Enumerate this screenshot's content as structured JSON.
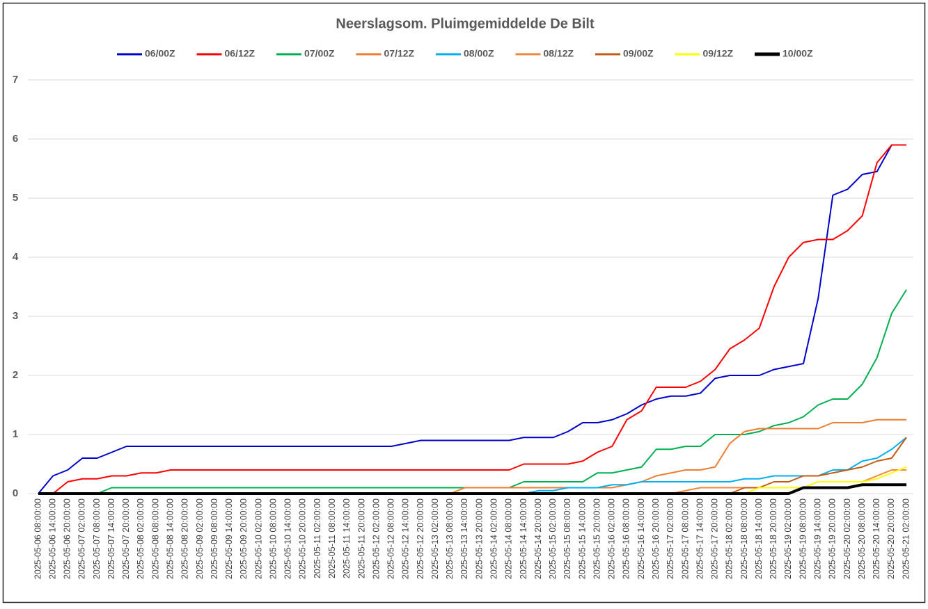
{
  "chart_data": {
    "type": "line",
    "title": "Neerslagsom. Pluimgemiddelde De Bilt",
    "categories": [
      "2025-05-06 08:00:00",
      "2025-05-06 14:00:00",
      "2025-05-06 20:00:00",
      "2025-05-07 02:00:00",
      "2025-05-07 08:00:00",
      "2025-05-07 14:00:00",
      "2025-05-07 20:00:00",
      "2025-05-08 02:00:00",
      "2025-05-08 08:00:00",
      "2025-05-08 14:00:00",
      "2025-05-08 20:00:00",
      "2025-05-09 02:00:00",
      "2025-05-09 08:00:00",
      "2025-05-09 14:00:00",
      "2025-05-09 20:00:00",
      "2025-05-10 02:00:00",
      "2025-05-10 08:00:00",
      "2025-05-10 14:00:00",
      "2025-05-10 20:00:00",
      "2025-05-11 02:00:00",
      "2025-05-11 08:00:00",
      "2025-05-11 14:00:00",
      "2025-05-11 20:00:00",
      "2025-05-12 02:00:00",
      "2025-05-12 08:00:00",
      "2025-05-12 14:00:00",
      "2025-05-12 20:00:00",
      "2025-05-13 02:00:00",
      "2025-05-13 08:00:00",
      "2025-05-13 14:00:00",
      "2025-05-13 20:00:00",
      "2025-05-14 02:00:00",
      "2025-05-14 08:00:00",
      "2025-05-14 14:00:00",
      "2025-05-14 20:00:00",
      "2025-05-15 02:00:00",
      "2025-05-15 08:00:00",
      "2025-05-15 14:00:00",
      "2025-05-15 20:00:00",
      "2025-05-16 02:00:00",
      "2025-05-16 08:00:00",
      "2025-05-16 14:00:00",
      "2025-05-16 20:00:00",
      "2025-05-17 02:00:00",
      "2025-05-17 08:00:00",
      "2025-05-17 14:00:00",
      "2025-05-17 20:00:00",
      "2025-05-18 02:00:00",
      "2025-05-18 08:00:00",
      "2025-05-18 14:00:00",
      "2025-05-18 20:00:00",
      "2025-05-19 02:00:00",
      "2025-05-19 08:00:00",
      "2025-05-19 14:00:00",
      "2025-05-19 20:00:00",
      "2025-05-20 02:00:00",
      "2025-05-20 08:00:00",
      "2025-05-20 14:00:00",
      "2025-05-20 20:00:00",
      "2025-05-21 02:00:00"
    ],
    "series": [
      {
        "name": "06/00Z",
        "color": "#0000cc",
        "width": 2,
        "values": [
          0,
          0.3,
          0.4,
          0.6,
          0.6,
          0.7,
          0.8,
          0.8,
          0.8,
          0.8,
          0.8,
          0.8,
          0.8,
          0.8,
          0.8,
          0.8,
          0.8,
          0.8,
          0.8,
          0.8,
          0.8,
          0.8,
          0.8,
          0.8,
          0.8,
          0.85,
          0.9,
          0.9,
          0.9,
          0.9,
          0.9,
          0.9,
          0.9,
          0.95,
          0.95,
          0.95,
          1.05,
          1.2,
          1.2,
          1.25,
          1.35,
          1.5,
          1.6,
          1.65,
          1.65,
          1.7,
          1.95,
          2.0,
          2.0,
          2.0,
          2.1,
          2.15,
          2.2,
          3.3,
          5.05,
          5.15,
          5.4,
          5.45,
          5.9,
          5.9
        ]
      },
      {
        "name": "06/12Z",
        "color": "#ff0000",
        "width": 2,
        "values": [
          null,
          0,
          0.2,
          0.25,
          0.25,
          0.3,
          0.3,
          0.35,
          0.35,
          0.4,
          0.4,
          0.4,
          0.4,
          0.4,
          0.4,
          0.4,
          0.4,
          0.4,
          0.4,
          0.4,
          0.4,
          0.4,
          0.4,
          0.4,
          0.4,
          0.4,
          0.4,
          0.4,
          0.4,
          0.4,
          0.4,
          0.4,
          0.4,
          0.5,
          0.5,
          0.5,
          0.5,
          0.55,
          0.7,
          0.8,
          1.25,
          1.4,
          1.8,
          1.8,
          1.8,
          1.9,
          2.1,
          2.45,
          2.6,
          2.8,
          3.5,
          4.0,
          4.25,
          4.3,
          4.3,
          4.45,
          4.7,
          5.6,
          5.9,
          5.9
        ]
      },
      {
        "name": "07/00Z",
        "color": "#00b050",
        "width": 2,
        "values": [
          null,
          null,
          null,
          0,
          0,
          0.1,
          0.1,
          0.1,
          0.1,
          0.1,
          0.1,
          0.1,
          0.1,
          0.1,
          0.1,
          0.1,
          0.1,
          0.1,
          0.1,
          0.1,
          0.1,
          0.1,
          0.1,
          0.1,
          0.1,
          0.1,
          0.1,
          0.1,
          0.1,
          0.1,
          0.1,
          0.1,
          0.1,
          0.2,
          0.2,
          0.2,
          0.2,
          0.2,
          0.35,
          0.35,
          0.4,
          0.45,
          0.75,
          0.75,
          0.8,
          0.8,
          1.0,
          1.0,
          1.0,
          1.05,
          1.15,
          1.2,
          1.3,
          1.5,
          1.6,
          1.6,
          1.85,
          2.3,
          3.05,
          3.45
        ]
      },
      {
        "name": "07/12Z",
        "color": "#ed7d31",
        "width": 2,
        "values": [
          null,
          null,
          null,
          null,
          null,
          null,
          null,
          null,
          null,
          null,
          null,
          null,
          null,
          null,
          null,
          null,
          null,
          null,
          null,
          null,
          null,
          null,
          null,
          null,
          null,
          null,
          null,
          null,
          0,
          0.1,
          0.1,
          0.1,
          0.1,
          0.1,
          0.1,
          0.1,
          0.1,
          0.1,
          0.1,
          0.1,
          0.15,
          0.2,
          0.3,
          0.35,
          0.4,
          0.4,
          0.45,
          0.85,
          1.05,
          1.1,
          1.1,
          1.1,
          1.1,
          1.1,
          1.2,
          1.2,
          1.2,
          1.25,
          1.25,
          1.25
        ]
      },
      {
        "name": "08/00Z",
        "color": "#00b0f0",
        "width": 2,
        "values": [
          null,
          null,
          null,
          null,
          null,
          null,
          null,
          null,
          null,
          null,
          null,
          null,
          null,
          null,
          null,
          null,
          null,
          null,
          null,
          null,
          null,
          null,
          null,
          null,
          null,
          null,
          null,
          null,
          null,
          null,
          null,
          null,
          null,
          0,
          0.05,
          0.05,
          0.1,
          0.1,
          0.1,
          0.15,
          0.15,
          0.2,
          0.2,
          0.2,
          0.2,
          0.2,
          0.2,
          0.2,
          0.25,
          0.25,
          0.3,
          0.3,
          0.3,
          0.3,
          0.4,
          0.4,
          0.55,
          0.6,
          0.75,
          0.95
        ]
      },
      {
        "name": "08/12Z",
        "color": "#f0883c",
        "width": 2,
        "values": [
          null,
          null,
          null,
          null,
          null,
          null,
          null,
          null,
          null,
          null,
          null,
          null,
          null,
          null,
          null,
          null,
          null,
          null,
          null,
          null,
          null,
          null,
          null,
          null,
          null,
          null,
          null,
          null,
          null,
          null,
          null,
          null,
          null,
          null,
          null,
          null,
          null,
          null,
          null,
          null,
          null,
          null,
          null,
          0,
          0.05,
          0.1,
          0.1,
          0.1,
          0.1,
          0.1,
          0.1,
          0.1,
          0.1,
          0.2,
          0.2,
          0.2,
          0.2,
          0.3,
          0.4,
          0.4
        ]
      },
      {
        "name": "09/00Z",
        "color": "#c55a11",
        "width": 2,
        "values": [
          null,
          null,
          null,
          null,
          null,
          null,
          null,
          null,
          null,
          null,
          null,
          null,
          null,
          null,
          null,
          null,
          null,
          null,
          null,
          null,
          null,
          null,
          null,
          null,
          null,
          null,
          null,
          null,
          null,
          null,
          null,
          null,
          null,
          null,
          null,
          null,
          null,
          null,
          null,
          null,
          null,
          null,
          null,
          null,
          null,
          null,
          null,
          0,
          0.1,
          0.1,
          0.2,
          0.2,
          0.3,
          0.3,
          0.35,
          0.4,
          0.45,
          0.55,
          0.6,
          0.95
        ]
      },
      {
        "name": "09/12Z",
        "color": "#ffff00",
        "width": 2,
        "values": [
          null,
          null,
          null,
          null,
          null,
          null,
          null,
          null,
          null,
          null,
          null,
          null,
          null,
          null,
          null,
          null,
          null,
          null,
          null,
          null,
          null,
          null,
          null,
          null,
          null,
          null,
          null,
          null,
          null,
          null,
          null,
          null,
          null,
          null,
          null,
          null,
          null,
          null,
          null,
          null,
          null,
          null,
          null,
          null,
          null,
          null,
          null,
          null,
          0,
          0.1,
          0.1,
          0.1,
          0.1,
          0.2,
          0.2,
          0.2,
          0.2,
          0.25,
          0.35,
          0.45
        ]
      },
      {
        "name": "10/00Z",
        "color": "#000000",
        "width": 4,
        "values": [
          0,
          0,
          0,
          0,
          0,
          0,
          0,
          0,
          0,
          0,
          0,
          0,
          0,
          0,
          0,
          0,
          0,
          0,
          0,
          0,
          0,
          0,
          0,
          0,
          0,
          0,
          0,
          0,
          0,
          0,
          0,
          0,
          0,
          0,
          0,
          0,
          0,
          0,
          0,
          0,
          0,
          0,
          0,
          0,
          0,
          0,
          0,
          0,
          0,
          0,
          0,
          0,
          0.1,
          0.1,
          0.1,
          0.1,
          0.15,
          0.15,
          0.15,
          0.15
        ]
      }
    ],
    "ylim": [
      0,
      7
    ],
    "yticks": [
      0,
      1,
      2,
      3,
      4,
      5,
      6,
      7
    ],
    "grid": true,
    "legend": "top"
  }
}
